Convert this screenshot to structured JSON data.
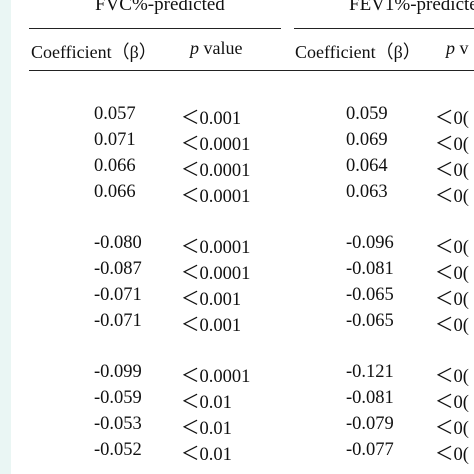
{
  "table": {
    "groups": [
      {
        "label": "FVC%-predicted"
      },
      {
        "label": "FEV1%-predicte"
      }
    ],
    "columns": [
      {
        "label": "Coefficient（β）"
      },
      {
        "label_prefix": "p",
        "label_suffix": " value"
      },
      {
        "label": "Coefficient（β）"
      },
      {
        "label_prefix": "p",
        "label_suffix": " v"
      }
    ],
    "rows": [
      [
        "0.057",
        "＜0.001",
        "0.059",
        "＜0("
      ],
      [
        "0.071",
        "＜0.0001",
        "0.069",
        "＜0("
      ],
      [
        "0.066",
        "＜0.0001",
        "0.064",
        "＜0("
      ],
      [
        "0.066",
        "＜0.0001",
        "0.063",
        "＜0("
      ],
      [
        "-0.080",
        "＜0.0001",
        "-0.096",
        "＜0("
      ],
      [
        "-0.087",
        "＜0.0001",
        "-0.081",
        "＜0("
      ],
      [
        "-0.071",
        "＜0.001",
        "-0.065",
        "＜0("
      ],
      [
        "-0.071",
        "＜0.001",
        "-0.065",
        "＜0("
      ],
      [
        "-0.099",
        "＜0.0001",
        "-0.121",
        "＜0("
      ],
      [
        "-0.059",
        "＜0.01",
        "-0.081",
        "＜0("
      ],
      [
        "-0.053",
        "＜0.01",
        "-0.079",
        "＜0("
      ],
      [
        "-0.052",
        "＜0.01",
        "-0.077",
        "＜0("
      ]
    ]
  }
}
